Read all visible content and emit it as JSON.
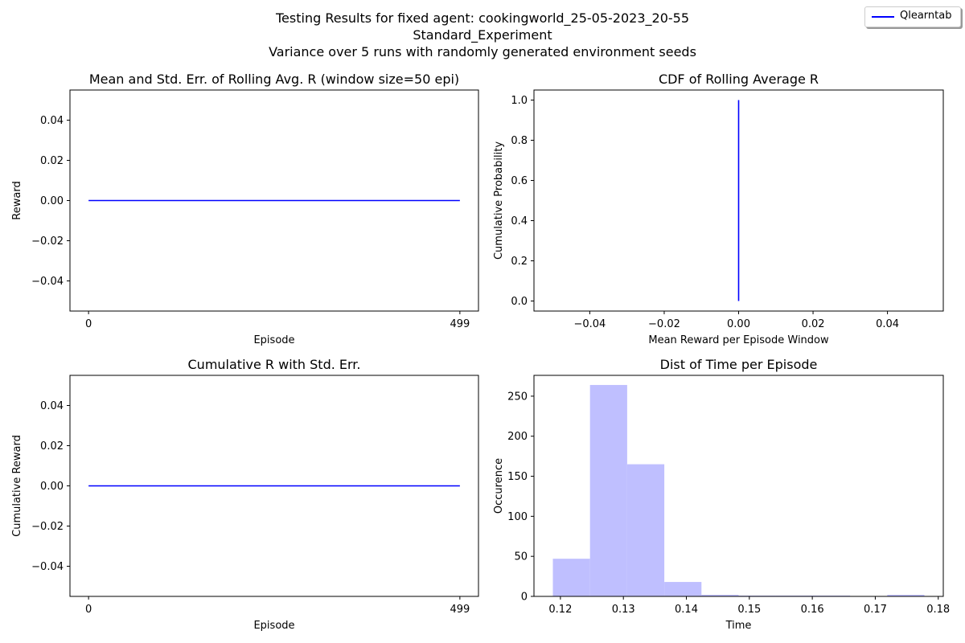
{
  "figure": {
    "title_lines": [
      "Testing Results for fixed agent: cookingworld_25-05-2023_20-55",
      "Standard_Experiment",
      "Variance over 5 runs with randomly generated environment seeds"
    ],
    "legend": {
      "label": "Qlearntab",
      "color": "#0000ff"
    }
  },
  "chart_data": [
    {
      "id": "rolling",
      "type": "line",
      "title": "Mean and Std. Err. of Rolling Avg. R (window size=50 epi)",
      "xlabel": "Episode",
      "ylabel": "Reward",
      "xlim": [
        -25,
        524
      ],
      "ylim": [
        -0.055,
        0.055
      ],
      "xticks": [
        0,
        499
      ],
      "xtick_labels": [
        "0",
        "499"
      ],
      "yticks": [
        -0.04,
        -0.02,
        0.0,
        0.02,
        0.04
      ],
      "ytick_labels": [
        "−0.04",
        "−0.02",
        "0.00",
        "0.02",
        "0.04"
      ],
      "series": [
        {
          "color": "#0000ff",
          "x": [
            0,
            499
          ],
          "y": [
            0,
            0
          ]
        }
      ]
    },
    {
      "id": "cdf",
      "type": "line",
      "title": "CDF of Rolling Average R",
      "xlabel": "Mean Reward per Episode Window",
      "ylabel": "Cumulative Probability",
      "xlim": [
        -0.055,
        0.055
      ],
      "ylim": [
        -0.05,
        1.05
      ],
      "xticks": [
        -0.04,
        -0.02,
        0.0,
        0.02,
        0.04
      ],
      "xtick_labels": [
        "−0.04",
        "−0.02",
        "0.00",
        "0.02",
        "0.04"
      ],
      "yticks": [
        0.0,
        0.2,
        0.4,
        0.6,
        0.8,
        1.0
      ],
      "ytick_labels": [
        "0.0",
        "0.2",
        "0.4",
        "0.6",
        "0.8",
        "1.0"
      ],
      "series": [
        {
          "color": "#0000ff",
          "x": [
            0,
            0
          ],
          "y": [
            0,
            1
          ]
        }
      ]
    },
    {
      "id": "cumulative",
      "type": "line",
      "title": "Cumulative R with Std. Err.",
      "xlabel": "Episode",
      "ylabel": "Cumulative Reward",
      "xlim": [
        -25,
        524
      ],
      "ylim": [
        -0.055,
        0.055
      ],
      "xticks": [
        0,
        499
      ],
      "xtick_labels": [
        "0",
        "499"
      ],
      "yticks": [
        -0.04,
        -0.02,
        0.0,
        0.02,
        0.04
      ],
      "ytick_labels": [
        "−0.04",
        "−0.02",
        "0.00",
        "0.02",
        "0.04"
      ],
      "series": [
        {
          "color": "#0000ff",
          "x": [
            0,
            499
          ],
          "y": [
            0,
            0
          ]
        }
      ]
    },
    {
      "id": "time_hist",
      "type": "bar",
      "title": "Dist of Time per Episode",
      "xlabel": "Time",
      "ylabel": "Occurence",
      "xlim": [
        0.1158,
        0.1808
      ],
      "ylim": [
        0,
        276
      ],
      "xticks": [
        0.12,
        0.13,
        0.14,
        0.15,
        0.16,
        0.17,
        0.18
      ],
      "xtick_labels": [
        "0.12",
        "0.13",
        "0.14",
        "0.15",
        "0.16",
        "0.17",
        "0.18"
      ],
      "yticks": [
        0,
        50,
        100,
        150,
        200,
        250
      ],
      "ytick_labels": [
        "0",
        "50",
        "100",
        "150",
        "200",
        "250"
      ],
      "bar_color": "#bfbfff",
      "bins": [
        {
          "x0": 0.1188,
          "x1": 0.1247,
          "count": 47
        },
        {
          "x0": 0.1247,
          "x1": 0.1306,
          "count": 264
        },
        {
          "x0": 0.1306,
          "x1": 0.1365,
          "count": 165
        },
        {
          "x0": 0.1365,
          "x1": 0.1424,
          "count": 18
        },
        {
          "x0": 0.1424,
          "x1": 0.1483,
          "count": 2
        },
        {
          "x0": 0.1483,
          "x1": 0.1542,
          "count": 1
        },
        {
          "x0": 0.1542,
          "x1": 0.1601,
          "count": 1
        },
        {
          "x0": 0.1601,
          "x1": 0.166,
          "count": 1
        },
        {
          "x0": 0.166,
          "x1": 0.1719,
          "count": 0
        },
        {
          "x0": 0.1719,
          "x1": 0.1778,
          "count": 2
        }
      ]
    }
  ]
}
